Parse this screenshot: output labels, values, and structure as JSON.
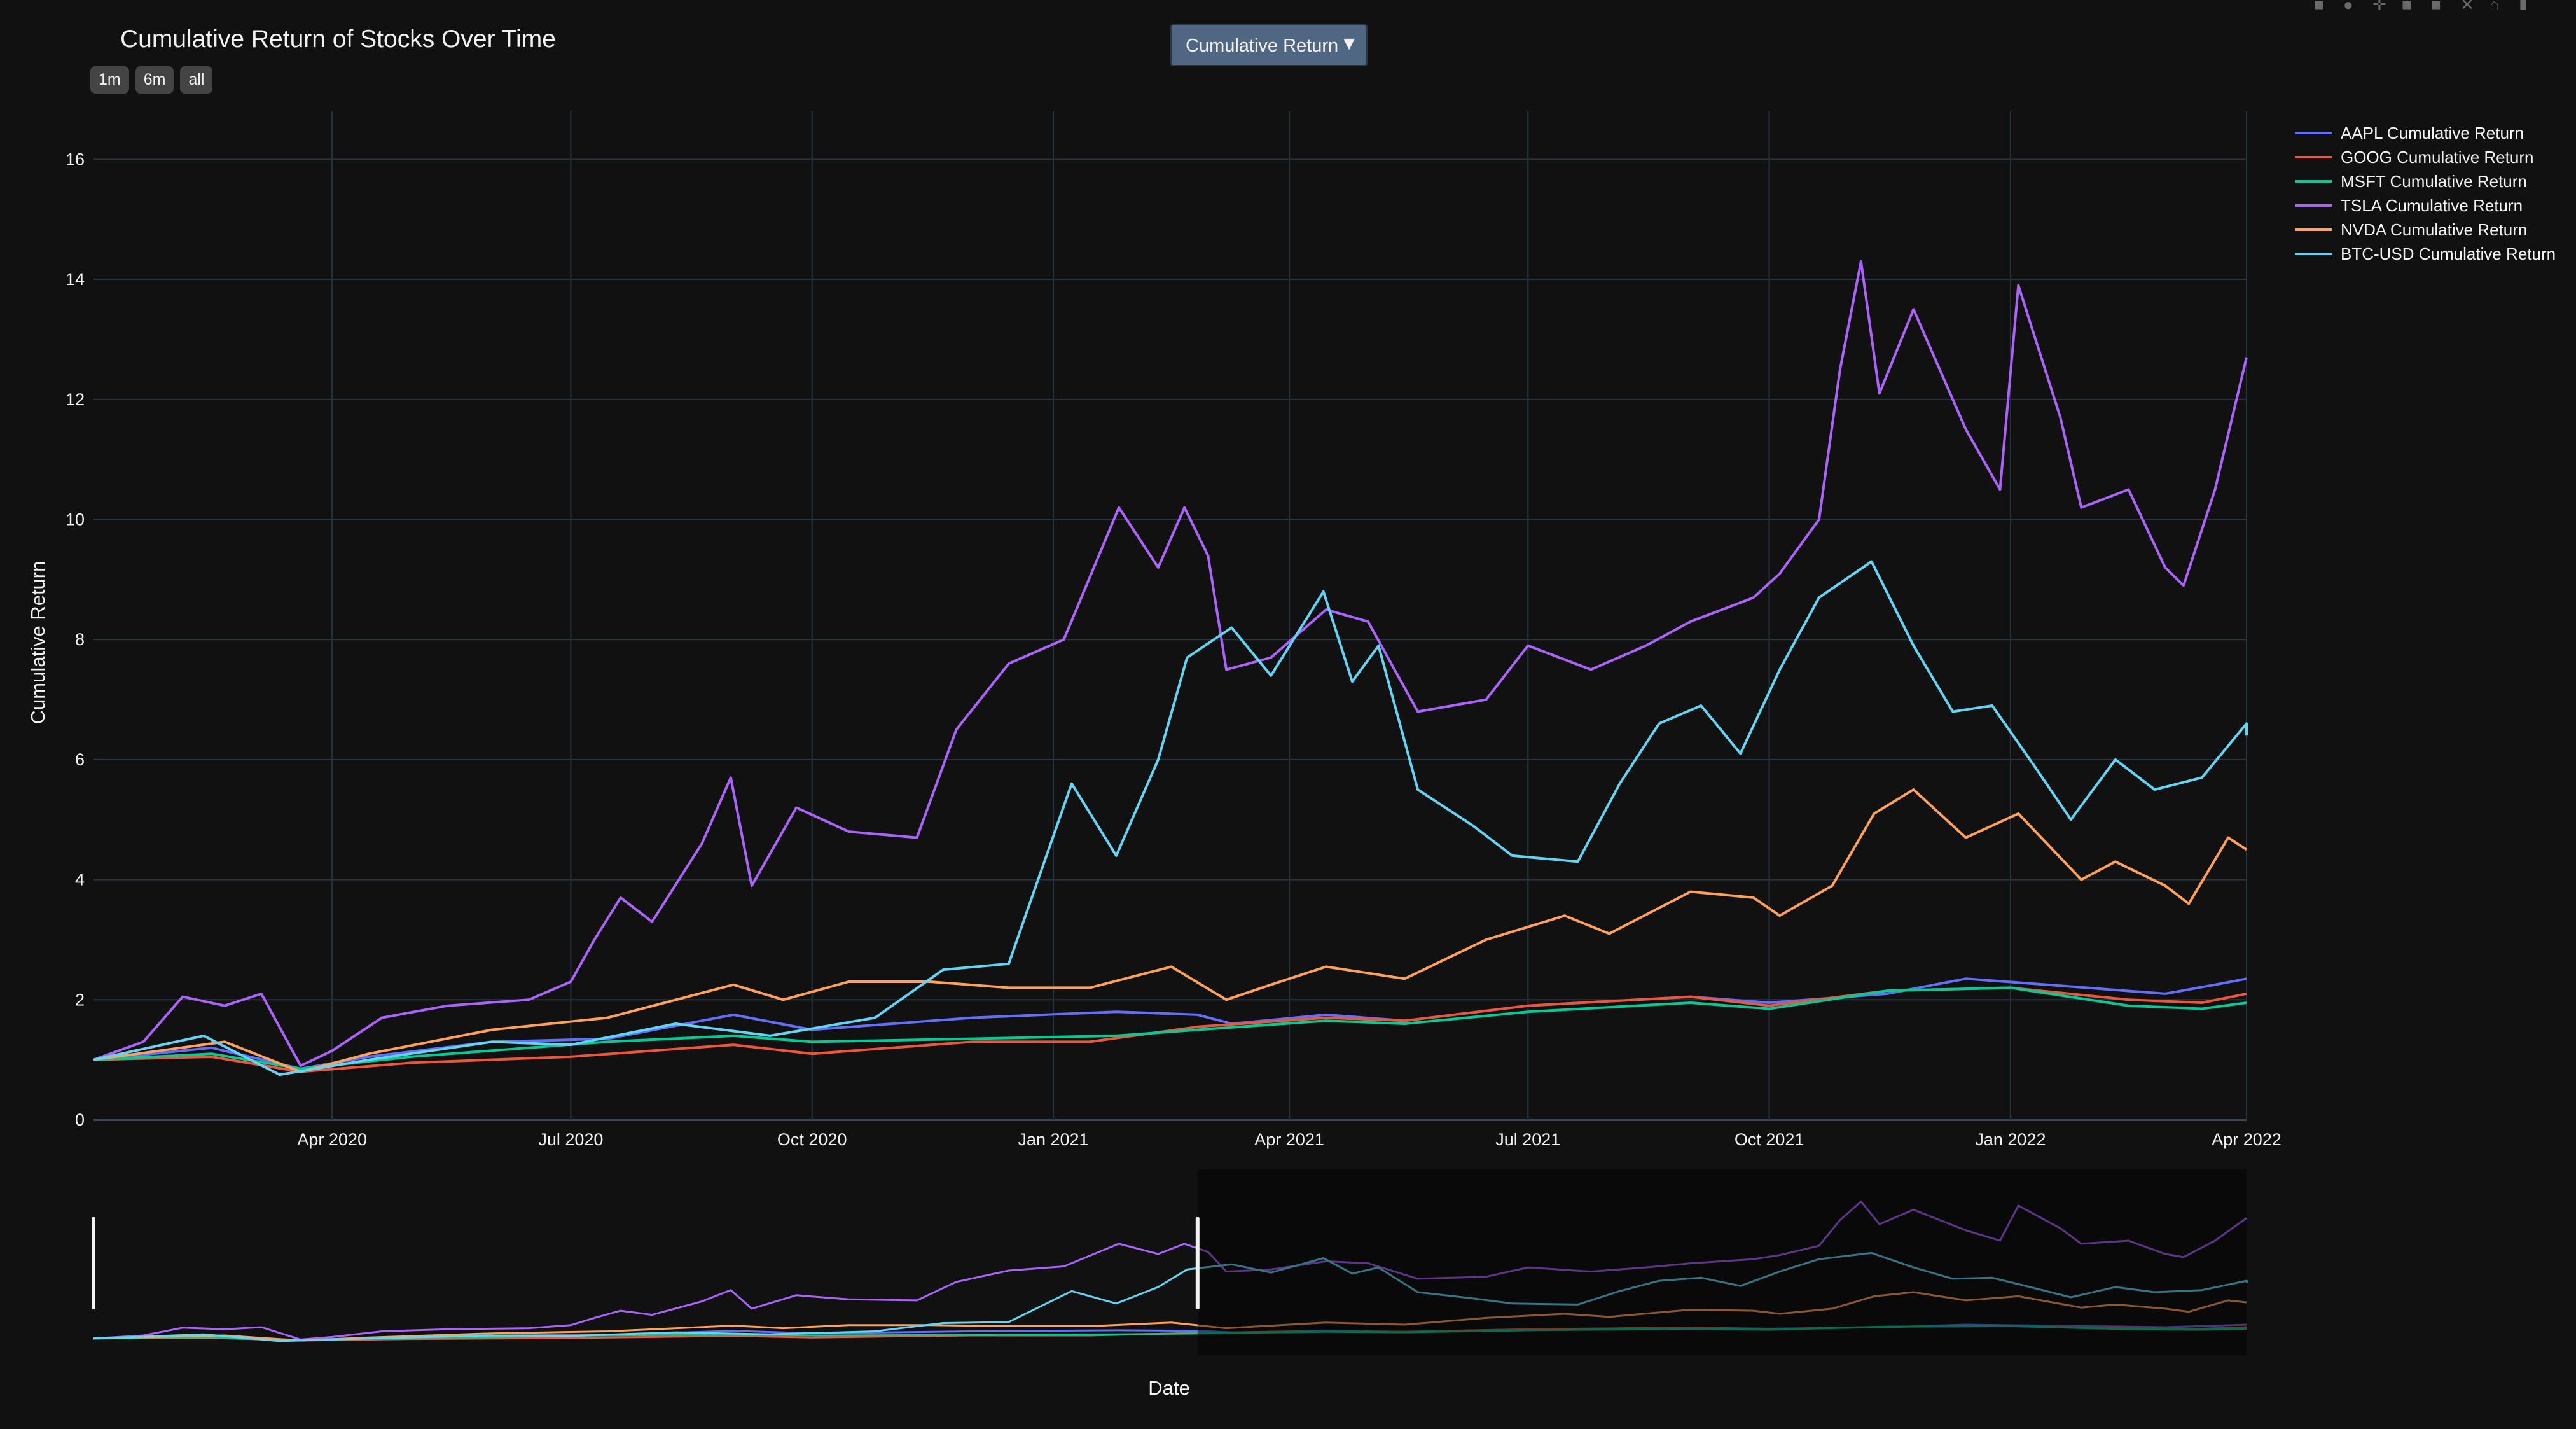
{
  "title": "Cumulative Return of Stocks Over Time",
  "range_buttons": [
    "1m",
    "6m",
    "all"
  ],
  "dropdown": {
    "label": "Cumulative Return",
    "arrow": "▼"
  },
  "modebar": [
    "camera-icon",
    "zoom-icon",
    "pan-icon",
    "zoom-in-icon",
    "zoom-out-icon",
    "autoscale-icon",
    "reset-icon",
    "plotly-logo-icon"
  ],
  "colors": {
    "background": "#111111",
    "grid": "#283442",
    "zeroline": "#3a4656"
  },
  "chart_data": {
    "type": "line",
    "title": "Cumulative Return of Stocks Over Time",
    "xlabel": "Date",
    "ylabel": "Cumulative Return",
    "xlim": [
      "2020-01-01",
      "2022-04-01"
    ],
    "ylim": [
      0,
      16.8
    ],
    "yticks": [
      0,
      2,
      4,
      6,
      8,
      10,
      12,
      14,
      16
    ],
    "xticks": [
      {
        "date": "2020-04-01",
        "label": "Apr 2020"
      },
      {
        "date": "2020-07-01",
        "label": "Jul 2020"
      },
      {
        "date": "2020-10-01",
        "label": "Oct 2020"
      },
      {
        "date": "2021-01-01",
        "label": "Jan 2021"
      },
      {
        "date": "2021-04-01",
        "label": "Apr 2021"
      },
      {
        "date": "2021-07-01",
        "label": "Jul 2021"
      },
      {
        "date": "2021-10-01",
        "label": "Oct 2021"
      },
      {
        "date": "2022-01-01",
        "label": "Jan 2022"
      },
      {
        "date": "2022-04-01",
        "label": "Apr 2022"
      }
    ],
    "grid": true,
    "legend_position": "top-right",
    "rangeslider": {
      "visible": true,
      "selected_from": "2020-01-01",
      "selected_to": "2021-02-25"
    },
    "series": [
      {
        "name": "AAPL Cumulative Return",
        "color": "#636efa",
        "points": [
          [
            "2020-01-01",
            1.0
          ],
          [
            "2020-02-15",
            1.2
          ],
          [
            "2020-03-20",
            0.85
          ],
          [
            "2020-04-15",
            1.05
          ],
          [
            "2020-06-01",
            1.3
          ],
          [
            "2020-07-15",
            1.35
          ],
          [
            "2020-09-01",
            1.75
          ],
          [
            "2020-10-01",
            1.5
          ],
          [
            "2020-12-01",
            1.7
          ],
          [
            "2021-01-25",
            1.8
          ],
          [
            "2021-02-25",
            1.75
          ],
          [
            "2021-03-10",
            1.6
          ],
          [
            "2021-04-15",
            1.75
          ],
          [
            "2021-05-15",
            1.65
          ],
          [
            "2021-07-01",
            1.9
          ],
          [
            "2021-09-01",
            2.05
          ],
          [
            "2021-10-01",
            1.95
          ],
          [
            "2021-11-15",
            2.1
          ],
          [
            "2021-12-15",
            2.35
          ],
          [
            "2022-01-15",
            2.25
          ],
          [
            "2022-03-01",
            2.1
          ],
          [
            "2022-03-20",
            2.25
          ],
          [
            "2022-04-01",
            2.35
          ]
        ]
      },
      {
        "name": "GOOG Cumulative Return",
        "color": "#ef553b",
        "points": [
          [
            "2020-01-01",
            1.0
          ],
          [
            "2020-02-15",
            1.05
          ],
          [
            "2020-03-20",
            0.8
          ],
          [
            "2020-05-01",
            0.95
          ],
          [
            "2020-07-01",
            1.05
          ],
          [
            "2020-09-01",
            1.25
          ],
          [
            "2020-10-01",
            1.1
          ],
          [
            "2020-12-01",
            1.3
          ],
          [
            "2021-01-15",
            1.3
          ],
          [
            "2021-02-25",
            1.55
          ],
          [
            "2021-04-15",
            1.7
          ],
          [
            "2021-05-15",
            1.65
          ],
          [
            "2021-07-01",
            1.9
          ],
          [
            "2021-09-01",
            2.05
          ],
          [
            "2021-10-01",
            1.9
          ],
          [
            "2021-11-15",
            2.15
          ],
          [
            "2022-01-01",
            2.2
          ],
          [
            "2022-02-15",
            2.0
          ],
          [
            "2022-03-15",
            1.95
          ],
          [
            "2022-04-01",
            2.1
          ]
        ]
      },
      {
        "name": "MSFT Cumulative Return",
        "color": "#00cc96",
        "points": [
          [
            "2020-01-01",
            1.0
          ],
          [
            "2020-02-15",
            1.1
          ],
          [
            "2020-03-20",
            0.85
          ],
          [
            "2020-05-01",
            1.05
          ],
          [
            "2020-07-15",
            1.3
          ],
          [
            "2020-09-01",
            1.4
          ],
          [
            "2020-10-01",
            1.3
          ],
          [
            "2020-12-01",
            1.35
          ],
          [
            "2021-01-25",
            1.4
          ],
          [
            "2021-02-25",
            1.5
          ],
          [
            "2021-04-15",
            1.65
          ],
          [
            "2021-05-15",
            1.6
          ],
          [
            "2021-07-01",
            1.8
          ],
          [
            "2021-09-01",
            1.95
          ],
          [
            "2021-10-01",
            1.85
          ],
          [
            "2021-11-15",
            2.15
          ],
          [
            "2022-01-01",
            2.2
          ],
          [
            "2022-02-15",
            1.9
          ],
          [
            "2022-03-15",
            1.85
          ],
          [
            "2022-04-01",
            1.95
          ]
        ]
      },
      {
        "name": "TSLA Cumulative Return",
        "color": "#ab63fa",
        "points": [
          [
            "2020-01-01",
            1.0
          ],
          [
            "2020-01-20",
            1.3
          ],
          [
            "2020-02-04",
            2.05
          ],
          [
            "2020-02-20",
            1.9
          ],
          [
            "2020-03-05",
            2.1
          ],
          [
            "2020-03-20",
            0.9
          ],
          [
            "2020-04-01",
            1.15
          ],
          [
            "2020-04-20",
            1.7
          ],
          [
            "2020-05-15",
            1.9
          ],
          [
            "2020-06-15",
            2.0
          ],
          [
            "2020-07-01",
            2.3
          ],
          [
            "2020-07-10",
            3.0
          ],
          [
            "2020-07-20",
            3.7
          ],
          [
            "2020-08-01",
            3.3
          ],
          [
            "2020-08-20",
            4.6
          ],
          [
            "2020-08-31",
            5.7
          ],
          [
            "2020-09-08",
            3.9
          ],
          [
            "2020-09-25",
            5.2
          ],
          [
            "2020-10-15",
            4.8
          ],
          [
            "2020-11-10",
            4.7
          ],
          [
            "2020-11-25",
            6.5
          ],
          [
            "2020-12-15",
            7.6
          ],
          [
            "2021-01-05",
            8.0
          ],
          [
            "2021-01-26",
            10.2
          ],
          [
            "2021-02-10",
            9.2
          ],
          [
            "2021-02-20",
            10.2
          ],
          [
            "2021-03-01",
            9.4
          ],
          [
            "2021-03-08",
            7.5
          ],
          [
            "2021-03-25",
            7.7
          ],
          [
            "2021-04-15",
            8.5
          ],
          [
            "2021-05-01",
            8.3
          ],
          [
            "2021-05-20",
            6.8
          ],
          [
            "2021-06-15",
            7.0
          ],
          [
            "2021-07-01",
            7.9
          ],
          [
            "2021-07-25",
            7.5
          ],
          [
            "2021-08-15",
            7.9
          ],
          [
            "2021-09-01",
            8.3
          ],
          [
            "2021-09-25",
            8.7
          ],
          [
            "2021-10-05",
            9.1
          ],
          [
            "2021-10-20",
            10.0
          ],
          [
            "2021-10-28",
            12.5
          ],
          [
            "2021-11-05",
            14.3
          ],
          [
            "2021-11-12",
            12.1
          ],
          [
            "2021-11-25",
            13.5
          ],
          [
            "2021-12-15",
            11.5
          ],
          [
            "2021-12-28",
            10.5
          ],
          [
            "2022-01-04",
            13.9
          ],
          [
            "2022-01-20",
            11.7
          ],
          [
            "2022-01-28",
            10.2
          ],
          [
            "2022-02-15",
            10.5
          ],
          [
            "2022-03-01",
            9.2
          ],
          [
            "2022-03-08",
            8.9
          ],
          [
            "2022-03-20",
            10.5
          ],
          [
            "2022-04-01",
            12.7
          ]
        ]
      },
      {
        "name": "NVDA Cumulative Return",
        "color": "#ffa15a",
        "points": [
          [
            "2020-01-01",
            1.0
          ],
          [
            "2020-02-20",
            1.3
          ],
          [
            "2020-03-20",
            0.8
          ],
          [
            "2020-04-15",
            1.1
          ],
          [
            "2020-06-01",
            1.5
          ],
          [
            "2020-07-15",
            1.7
          ],
          [
            "2020-09-01",
            2.25
          ],
          [
            "2020-09-20",
            2.0
          ],
          [
            "2020-10-15",
            2.3
          ],
          [
            "2020-11-15",
            2.3
          ],
          [
            "2020-12-15",
            2.2
          ],
          [
            "2021-01-15",
            2.2
          ],
          [
            "2021-02-15",
            2.55
          ],
          [
            "2021-03-08",
            2.0
          ],
          [
            "2021-03-25",
            2.25
          ],
          [
            "2021-04-15",
            2.55
          ],
          [
            "2021-05-15",
            2.35
          ],
          [
            "2021-06-15",
            3.0
          ],
          [
            "2021-07-15",
            3.4
          ],
          [
            "2021-08-01",
            3.1
          ],
          [
            "2021-09-01",
            3.8
          ],
          [
            "2021-09-25",
            3.7
          ],
          [
            "2021-10-05",
            3.4
          ],
          [
            "2021-10-25",
            3.9
          ],
          [
            "2021-11-10",
            5.1
          ],
          [
            "2021-11-25",
            5.5
          ],
          [
            "2021-12-15",
            4.7
          ],
          [
            "2022-01-04",
            5.1
          ],
          [
            "2022-01-28",
            4.0
          ],
          [
            "2022-02-10",
            4.3
          ],
          [
            "2022-03-01",
            3.9
          ],
          [
            "2022-03-10",
            3.6
          ],
          [
            "2022-03-25",
            4.7
          ],
          [
            "2022-04-01",
            4.5
          ]
        ]
      },
      {
        "name": "BTC-USD Cumulative Return",
        "color": "#64d4f4",
        "points": [
          [
            "2020-01-01",
            1.0
          ],
          [
            "2020-02-12",
            1.4
          ],
          [
            "2020-03-12",
            0.75
          ],
          [
            "2020-04-15",
            1.0
          ],
          [
            "2020-06-01",
            1.3
          ],
          [
            "2020-07-01",
            1.25
          ],
          [
            "2020-08-10",
            1.6
          ],
          [
            "2020-09-15",
            1.4
          ],
          [
            "2020-10-25",
            1.7
          ],
          [
            "2020-11-20",
            2.5
          ],
          [
            "2020-12-15",
            2.6
          ],
          [
            "2021-01-08",
            5.6
          ],
          [
            "2021-01-25",
            4.4
          ],
          [
            "2021-02-10",
            6.0
          ],
          [
            "2021-02-21",
            7.7
          ],
          [
            "2021-03-10",
            8.2
          ],
          [
            "2021-03-25",
            7.4
          ],
          [
            "2021-04-14",
            8.8
          ],
          [
            "2021-04-25",
            7.3
          ],
          [
            "2021-05-05",
            7.9
          ],
          [
            "2021-05-20",
            5.5
          ],
          [
            "2021-06-10",
            4.9
          ],
          [
            "2021-06-25",
            4.4
          ],
          [
            "2021-07-20",
            4.3
          ],
          [
            "2021-08-05",
            5.6
          ],
          [
            "2021-08-20",
            6.6
          ],
          [
            "2021-09-05",
            6.9
          ],
          [
            "2021-09-20",
            6.1
          ],
          [
            "2021-10-05",
            7.5
          ],
          [
            "2021-10-20",
            8.7
          ],
          [
            "2021-11-09",
            9.3
          ],
          [
            "2021-11-25",
            7.9
          ],
          [
            "2021-12-10",
            6.8
          ],
          [
            "2021-12-25",
            6.9
          ],
          [
            "2022-01-10",
            5.9
          ],
          [
            "2022-01-24",
            5.0
          ],
          [
            "2022-02-10",
            6.0
          ],
          [
            "2022-02-25",
            5.5
          ],
          [
            "2022-03-15",
            5.7
          ],
          [
            "2022-04-01",
            6.6
          ],
          [
            "2022-04-01",
            6.4
          ]
        ]
      }
    ]
  }
}
